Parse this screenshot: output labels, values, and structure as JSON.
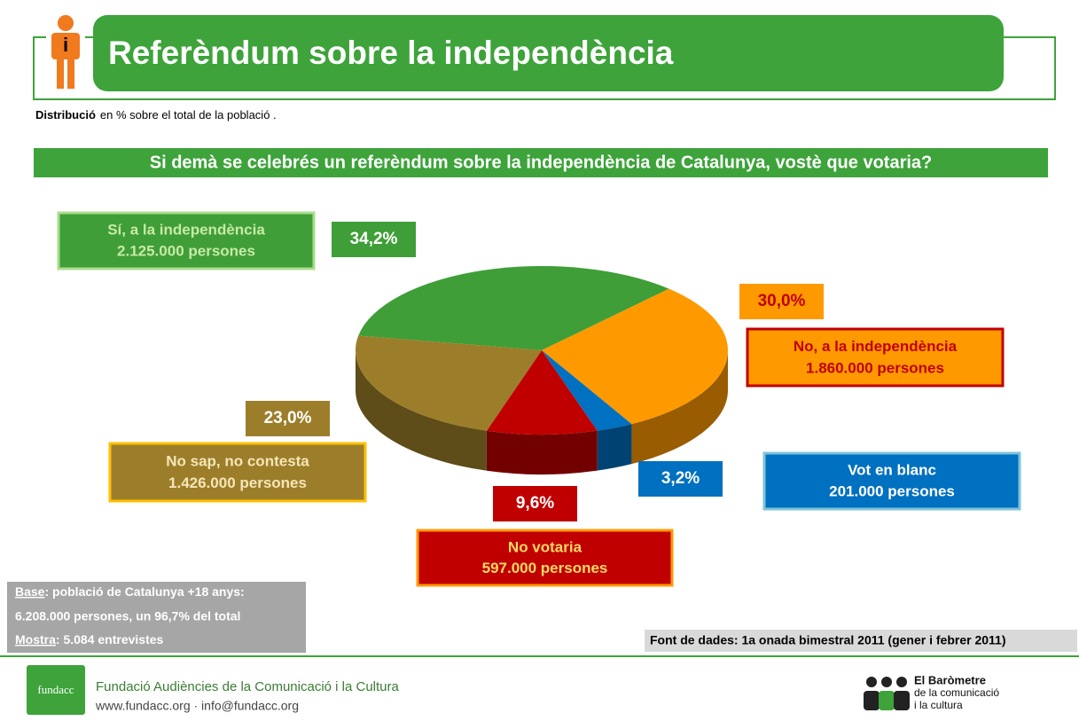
{
  "chart_data": {
    "type": "pie3d",
    "title": "Referèndum sobre la independència",
    "subtitle_bold": "Distribució",
    "subtitle": "en % sobre el total de la població .",
    "question": "Si demà se celebrés un referèndum sobre la independència de Catalunya, vostè que votaria?",
    "categories": [
      "Sí, a la independència",
      "No, a la independència",
      "Vot en blanc",
      "No votaria",
      "No sap, no contesta"
    ],
    "counts": [
      "2.125.000 persones",
      "1.860.000 persones",
      "201.000 persones",
      "597.000 persones",
      "1.426.000 persones"
    ],
    "values": [
      34.2,
      30.0,
      3.2,
      9.6,
      23.0
    ],
    "value_labels": [
      "34,2%",
      "30,0%",
      "3,2%",
      "9,6%",
      "23,0%"
    ],
    "colors": [
      "#3f9e37",
      "#ff9900",
      "#0070c0",
      "#c00000",
      "#9c7e2a"
    ],
    "notes": {
      "base_key": "Base",
      "base": ": població de Catalunya +18 anys:",
      "base2": "6.208.000 persones, un 96,7% del total",
      "sample_key": "Mostra",
      "sample": ":  5.084 entrevistes"
    },
    "source": "Font de dades: 1a onada bimestral 2011 (gener i febrer 2011)"
  },
  "footer": {
    "logo": "fundacc",
    "org": "Fundació Audiències de la Comunicació i la Cultura",
    "contact": "www.fundacc.org  ·  info@fundacc.org",
    "brand1": "El Baròmetre",
    "brand2": "de la comunicació",
    "brand3": "i la cultura"
  }
}
